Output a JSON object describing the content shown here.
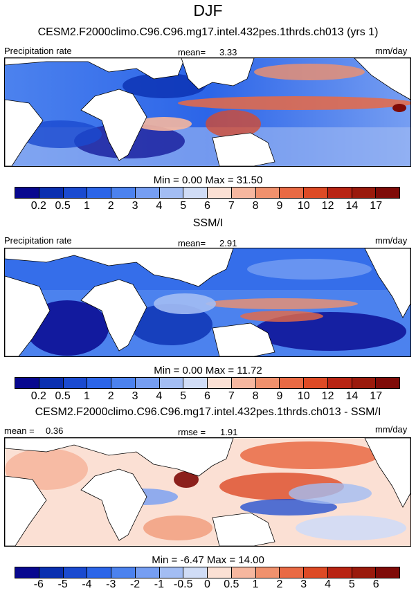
{
  "title": "DJF",
  "panel1": {
    "subtitle": "CESM2.F2000climo.C96.C96.mg17.intel.432pes.1thrds.ch013 (yrs 1)",
    "left_label": "Precipitation rate",
    "stat_label": "mean=",
    "stat_value": "3.33",
    "units": "mm/day",
    "minmax": "Min =   0.00 Max =  31.50"
  },
  "panel2": {
    "subtitle": "SSM/I",
    "left_label": "Precipitation rate",
    "stat_label": "mean=",
    "stat_value": "2.91",
    "units": "mm/day",
    "minmax": "Min =   0.00 Max =  11.72"
  },
  "panel3": {
    "subtitle": "CESM2.F2000climo.C96.C96.mg17.intel.432pes.1thrds.ch013 - SSM/I",
    "left_label": "mean =",
    "left_value": "0.36",
    "stat_label": "rmse =",
    "stat_value": "1.91",
    "units": "mm/day",
    "minmax": "Min =  -6.47 Max =  14.00"
  },
  "precip_levels": [
    "0.2",
    "0.5",
    "1",
    "2",
    "3",
    "4",
    "5",
    "6",
    "7",
    "8",
    "9",
    "10",
    "12",
    "14",
    "17"
  ],
  "diff_levels": [
    "-6",
    "-5",
    "-4",
    "-3",
    "-2",
    "-1",
    "-0.5",
    "0",
    "0.5",
    "1",
    "2",
    "3",
    "4",
    "5",
    "6"
  ],
  "colors": {
    "scale": [
      "#08088f",
      "#0a2fb0",
      "#1a4ad0",
      "#2c65e8",
      "#4c82ee",
      "#769ef2",
      "#a3bdf3",
      "#d0dcf6",
      "#fbe0d4",
      "#f6b79f",
      "#f0916d",
      "#e96a44",
      "#dd4a25",
      "#b82413",
      "#7f0b08",
      "#6b0000"
    ]
  }
}
